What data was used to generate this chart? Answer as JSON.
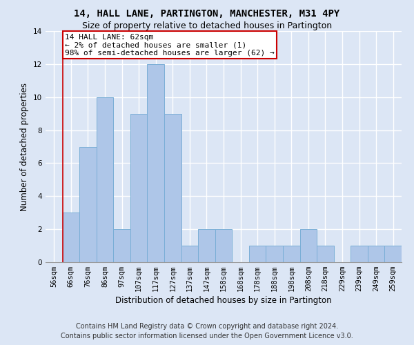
{
  "title": "14, HALL LANE, PARTINGTON, MANCHESTER, M31 4PY",
  "subtitle": "Size of property relative to detached houses in Partington",
  "xlabel": "Distribution of detached houses by size in Partington",
  "ylabel": "Number of detached properties",
  "bar_labels": [
    "56sqm",
    "66sqm",
    "76sqm",
    "86sqm",
    "97sqm",
    "107sqm",
    "117sqm",
    "127sqm",
    "137sqm",
    "147sqm",
    "158sqm",
    "168sqm",
    "178sqm",
    "188sqm",
    "198sqm",
    "208sqm",
    "218sqm",
    "229sqm",
    "239sqm",
    "249sqm",
    "259sqm"
  ],
  "bar_values": [
    0,
    3,
    7,
    10,
    2,
    9,
    12,
    9,
    1,
    2,
    2,
    0,
    1,
    1,
    1,
    2,
    1,
    0,
    1,
    1,
    1
  ],
  "bar_color": "#aec6e8",
  "bar_edge_color": "#7aaed6",
  "ylim": [
    0,
    14
  ],
  "yticks": [
    0,
    2,
    4,
    6,
    8,
    10,
    12,
    14
  ],
  "annotation_text": "14 HALL LANE: 62sqm\n← 2% of detached houses are smaller (1)\n98% of semi-detached houses are larger (62) →",
  "annotation_box_color": "#ffffff",
  "annotation_box_edge_color": "#cc0000",
  "vline_color": "#cc0000",
  "footer_line1": "Contains HM Land Registry data © Crown copyright and database right 2024.",
  "footer_line2": "Contains public sector information licensed under the Open Government Licence v3.0.",
  "background_color": "#dce6f5",
  "plot_bg_color": "#dce6f5",
  "grid_color": "#ffffff",
  "title_fontsize": 10,
  "subtitle_fontsize": 9,
  "axis_label_fontsize": 8.5,
  "tick_fontsize": 7.5,
  "footer_fontsize": 7,
  "annotation_fontsize": 8
}
